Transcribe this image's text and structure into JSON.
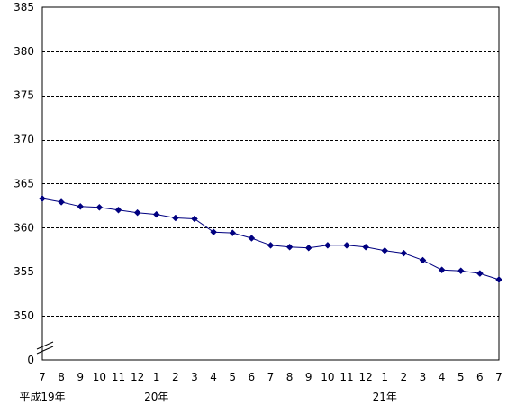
{
  "chart_data": {
    "type": "line",
    "title": "",
    "xlabel": "",
    "ylabel": "",
    "y_axis_break": true,
    "y_ticks": [
      0,
      350,
      355,
      360,
      365,
      370,
      375,
      380,
      385
    ],
    "ylim": [
      350,
      385
    ],
    "grid": true,
    "x_tick_labels": [
      "7",
      "8",
      "9",
      "10",
      "11",
      "12",
      "1",
      "2",
      "3",
      "4",
      "5",
      "6",
      "7",
      "8",
      "9",
      "10",
      "11",
      "12",
      "1",
      "2",
      "3",
      "4",
      "5",
      "6",
      "7"
    ],
    "year_labels": [
      {
        "text": "平成19年",
        "at_index": 0
      },
      {
        "text": "20年",
        "at_index": 6
      },
      {
        "text": "21年",
        "at_index": 18
      }
    ],
    "series_color": "#000080",
    "series": [
      {
        "values": [
          363.3,
          362.9,
          362.4,
          362.3,
          362.0,
          361.7,
          361.5,
          361.1,
          361.0,
          359.5,
          359.4,
          358.8,
          358.0,
          357.8,
          357.7,
          358.0,
          358.0,
          357.8,
          357.4,
          357.1,
          356.3,
          355.2,
          355.1,
          354.8,
          354.1
        ]
      }
    ]
  }
}
